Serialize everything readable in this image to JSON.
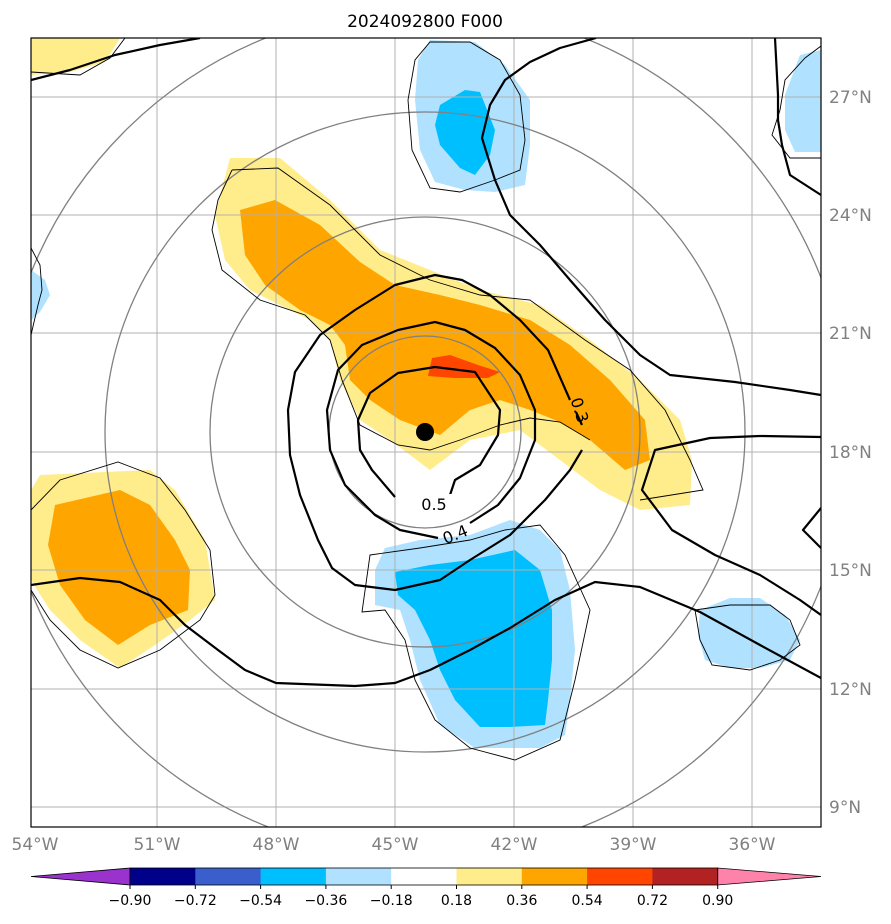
{
  "title": "2024092800 F000",
  "lon_labels": [
    "54°W",
    "51°W",
    "48°W",
    "45°W",
    "42°W",
    "39°W",
    "36°W"
  ],
  "lat_labels": [
    "27°N",
    "24°N",
    "21°N",
    "18°N",
    "15°N",
    "12°N",
    "9°N"
  ],
  "contour_labels": [
    "0.5",
    "0.4",
    "0.3"
  ],
  "colorbar": {
    "ticks": [
      "−0.90",
      "−0.72",
      "−0.54",
      "−0.36",
      "−0.18",
      "0.18",
      "0.36",
      "0.54",
      "0.72",
      "0.90"
    ],
    "colors": [
      "#9a32cd",
      "#00008b",
      "#3a5fcd",
      "#00bfff",
      "#b0e2ff",
      "#ffffff",
      "#ffec8b",
      "#ffa500",
      "#ff4500",
      "#b22222",
      "#ff82ab"
    ]
  },
  "storm_center": {
    "lon": "44.2°W",
    "lat": "18.5°N"
  }
}
